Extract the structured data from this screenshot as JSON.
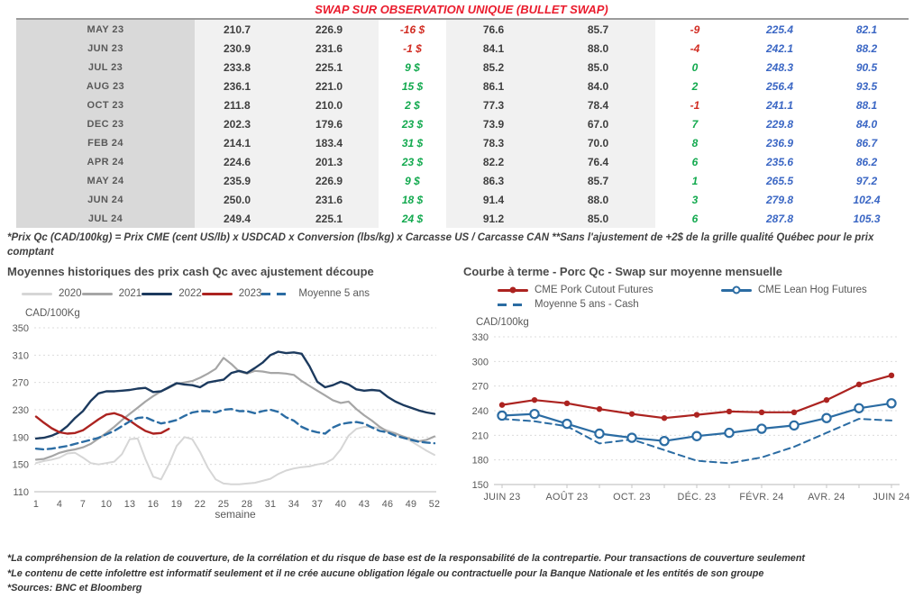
{
  "header": {
    "title": "SWAP SUR OBSERVATION UNIQUE (BULLET SWAP)"
  },
  "table": {
    "rows": [
      [
        "MAY 23",
        "210.7",
        "226.9",
        "-16 $",
        "76.6",
        "85.7",
        "-9",
        "225.4",
        "82.1"
      ],
      [
        "JUN 23",
        "230.9",
        "231.6",
        "-1 $",
        "84.1",
        "88.0",
        "-4",
        "242.1",
        "88.2"
      ],
      [
        "JUL 23",
        "233.8",
        "225.1",
        "9 $",
        "85.2",
        "85.0",
        "0",
        "248.3",
        "90.5"
      ],
      [
        "AUG 23",
        "236.1",
        "221.0",
        "15 $",
        "86.1",
        "84.0",
        "2",
        "256.4",
        "93.5"
      ],
      [
        "OCT 23",
        "211.8",
        "210.0",
        "2 $",
        "77.3",
        "78.4",
        "-1",
        "241.1",
        "88.1"
      ],
      [
        "DEC 23",
        "202.3",
        "179.6",
        "23 $",
        "73.9",
        "67.0",
        "7",
        "229.8",
        "84.0"
      ],
      [
        "FEB 24",
        "214.1",
        "183.4",
        "31 $",
        "78.3",
        "70.0",
        "8",
        "236.9",
        "86.7"
      ],
      [
        "APR 24",
        "224.6",
        "201.3",
        "23 $",
        "82.2",
        "76.4",
        "6",
        "235.6",
        "86.2"
      ],
      [
        "MAY 24",
        "235.9",
        "226.9",
        "9 $",
        "86.3",
        "85.7",
        "1",
        "265.5",
        "97.2"
      ],
      [
        "JUN 24",
        "250.0",
        "231.6",
        "18 $",
        "91.4",
        "88.0",
        "3",
        "279.8",
        "102.4"
      ],
      [
        "JUL 24",
        "249.4",
        "225.1",
        "24 $",
        "91.2",
        "85.0",
        "6",
        "287.8",
        "105.3"
      ]
    ],
    "footnote": "*Prix Qc (CAD/100kg) = Prix CME (cent US/lb) x USDCAD x Conversion (lbs/kg) x Carcasse US / Carcasse CAN **Sans l'ajustement de +2$ de la grille qualité Québec pour le prix comptant"
  },
  "colors": {
    "title_red": "#ea1c2d",
    "negative_red": "#d12b21",
    "positive_green": "#12a94e",
    "table_blue": "#3a66c4",
    "navy_2022": "#1c3a5e",
    "red_2023": "#ac2320",
    "gray_2021": "#a6a6a6",
    "lightgray_2020": "#d6d6d6",
    "chart_blue": "#2b6ca3"
  },
  "chart_data": [
    {
      "type": "line",
      "title": "Moyennes historiques des prix cash Qc avec ajustement découpe",
      "ylabel": "CAD/100Kg",
      "xlabel": "semaine",
      "ylim": [
        110,
        350
      ],
      "yticks": [
        110,
        150,
        190,
        230,
        270,
        310,
        350
      ],
      "xtick_positions": [
        0,
        3,
        6,
        9,
        12,
        15,
        18,
        21,
        24,
        27,
        30,
        33,
        36,
        39,
        42,
        45,
        48,
        51
      ],
      "xtick_labels": [
        "1",
        "4",
        "7",
        "10",
        "13",
        "16",
        "19",
        "22",
        "25",
        "28",
        "31",
        "34",
        "37",
        "40",
        "43",
        "46",
        "49",
        "52"
      ],
      "grid": true,
      "legend_position": "top",
      "series": [
        {
          "name": "2020",
          "color": "#d6d6d6",
          "width": 2,
          "values": [
            152,
            155,
            157,
            160,
            166,
            167,
            160,
            152,
            150,
            152,
            154,
            165,
            187,
            188,
            158,
            132,
            128,
            150,
            177,
            190,
            187,
            168,
            145,
            128,
            122,
            121,
            121,
            122,
            123,
            126,
            129,
            136,
            141,
            144,
            146,
            147,
            150,
            152,
            158,
            172,
            192,
            202,
            205,
            205,
            203,
            200,
            196,
            190,
            184,
            177,
            170,
            164
          ]
        },
        {
          "name": "2021",
          "color": "#a6a6a6",
          "width": 2.2,
          "values": [
            157,
            158,
            162,
            167,
            170,
            172,
            175,
            180,
            188,
            196,
            205,
            215,
            224,
            233,
            242,
            250,
            257,
            262,
            268,
            270,
            272,
            277,
            283,
            290,
            306,
            297,
            286,
            283,
            287,
            286,
            284,
            284,
            283,
            281,
            272,
            265,
            258,
            251,
            244,
            240,
            242,
            231,
            222,
            214,
            205,
            198,
            195,
            191,
            187,
            184,
            186,
            191
          ]
        },
        {
          "name": "2022",
          "color": "#1c3a5e",
          "width": 2.4,
          "values": [
            188,
            189,
            192,
            197,
            206,
            218,
            228,
            243,
            254,
            257,
            257,
            258,
            259,
            261,
            262,
            256,
            257,
            263,
            269,
            267,
            266,
            263,
            270,
            272,
            274,
            284,
            287,
            284,
            291,
            299,
            310,
            315,
            313,
            314,
            312,
            294,
            271,
            263,
            266,
            271,
            267,
            260,
            258,
            259,
            258,
            249,
            242,
            237,
            233,
            229,
            226,
            224
          ]
        },
        {
          "name": "2023",
          "color": "#ac2320",
          "width": 2.4,
          "values": [
            220,
            211,
            203,
            197,
            195,
            196,
            200,
            208,
            216,
            223,
            225,
            221,
            214,
            206,
            199,
            195,
            196,
            202
          ]
        },
        {
          "name": "Moyenne 5 ans",
          "color": "#2b6ca3",
          "width": 2.4,
          "dash": true,
          "values": [
            173,
            172,
            173,
            175,
            177,
            180,
            183,
            186,
            189,
            194,
            199,
            206,
            213,
            218,
            219,
            214,
            210,
            212,
            215,
            221,
            226,
            228,
            228,
            226,
            230,
            231,
            228,
            228,
            225,
            228,
            230,
            227,
            219,
            214,
            205,
            200,
            197,
            195,
            204,
            209,
            211,
            212,
            210,
            204,
            199,
            197,
            192,
            189,
            186,
            183,
            182,
            181
          ]
        }
      ]
    },
    {
      "type": "line",
      "title": "Courbe à terme - Porc Qc - Swap sur moyenne mensuelle",
      "ylabel": "CAD/100kg",
      "xlabel": "",
      "ylim": [
        150,
        330
      ],
      "yticks": [
        150,
        180,
        210,
        240,
        270,
        300,
        330
      ],
      "xtick_positions": [
        0,
        2,
        4,
        6,
        8,
        10,
        12
      ],
      "xtick_labels": [
        "JUIN 23",
        "AOÛT 23",
        "OCT. 23",
        "DÉC. 23",
        "FÉVR. 24",
        "AVR. 24",
        "JUIN 24"
      ],
      "grid": true,
      "legend_position": "top",
      "series": [
        {
          "name": "CME Pork Cutout Futures",
          "color": "#ac2320",
          "width": 2.2,
          "marker": "dot",
          "values": [
            247,
            253,
            249,
            242,
            236,
            231,
            235,
            239,
            238,
            238,
            253,
            272,
            283
          ]
        },
        {
          "name": "CME Lean Hog Futures",
          "color": "#2b6ca3",
          "width": 2.2,
          "marker": "circle",
          "values": [
            234,
            236,
            224,
            212,
            207,
            203,
            209,
            213,
            218,
            222,
            231,
            243,
            249
          ]
        },
        {
          "name": "Moyenne 5 ans - Cash",
          "color": "#2b6ca3",
          "width": 2,
          "dash": true,
          "values": [
            230,
            227,
            221,
            200,
            205,
            192,
            179,
            176,
            183,
            196,
            213,
            230,
            228
          ]
        }
      ]
    }
  ],
  "footer": {
    "lines": [
      "*La compréhension de la relation de couverture, de la corrélation et du risque de base est de la responsabilité de la contrepartie. Pour transactions de couverture seulement",
      "*Le contenu de cette infolettre est informatif seulement et il ne crée aucune obligation légale ou contractuelle pour la Banque Nationale et les entités de son groupe",
      "*Sources: BNC et Bloomberg"
    ]
  }
}
